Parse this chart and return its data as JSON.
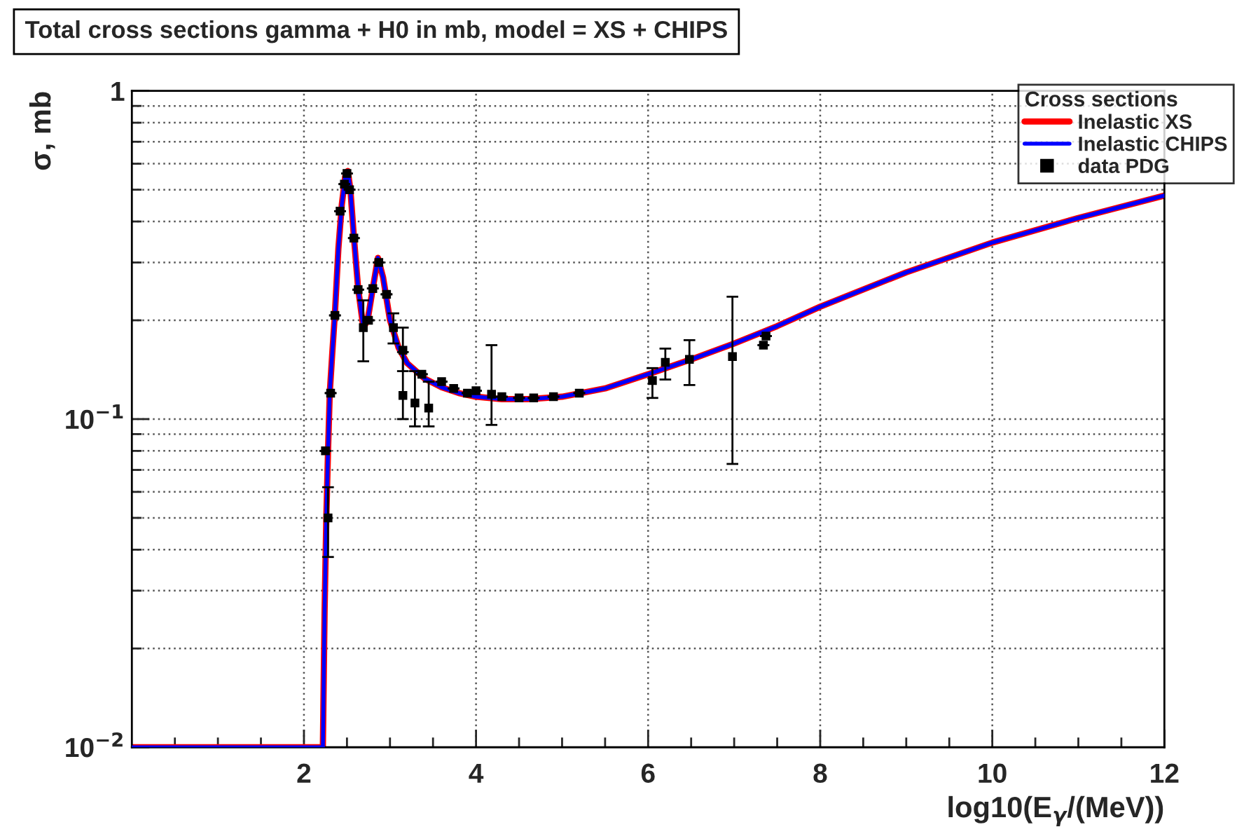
{
  "chart_data": {
    "type": "line",
    "title": "Total cross sections gamma + H0 in mb, model = XS + CHIPS",
    "xlabel": "log10(E$_{γ}$/(MeV))",
    "ylabel": "σ, mb",
    "legend_title": "Cross sections",
    "log": "y",
    "grid": true,
    "legend": "top right",
    "xlim": [
      0,
      12
    ],
    "ylim": [
      0.01,
      1
    ],
    "xticks": [
      {
        "value": 0.5,
        "label": null
      },
      {
        "value": 1,
        "label": null
      },
      {
        "value": 1.5,
        "label": null
      },
      2,
      {
        "value": 2.5,
        "label": null
      },
      {
        "value": 3,
        "label": null
      },
      {
        "value": 3.5,
        "label": null
      },
      4,
      {
        "value": 4.5,
        "label": null
      },
      {
        "value": 5,
        "label": null
      },
      {
        "value": 5.5,
        "label": null
      },
      6,
      {
        "value": 6.5,
        "label": null
      },
      {
        "value": 7,
        "label": null
      },
      {
        "value": 7.5,
        "label": null
      },
      8,
      {
        "value": 8.5,
        "label": null
      },
      {
        "value": 9,
        "label": null
      },
      {
        "value": 9.5,
        "label": null
      },
      10,
      {
        "value": 10.5,
        "label": null
      },
      {
        "value": 11,
        "label": null
      },
      {
        "value": 11.5,
        "label": null
      },
      12
    ],
    "yticks": [
      {
        "value": 0.01,
        "label": "10$^{−2}$"
      },
      {
        "value": 0.02,
        "label": null
      },
      {
        "value": 0.03,
        "label": null
      },
      {
        "value": 0.04,
        "label": null
      },
      {
        "value": 0.05,
        "label": null
      },
      {
        "value": 0.06,
        "label": null
      },
      {
        "value": 0.07,
        "label": null
      },
      {
        "value": 0.08,
        "label": null
      },
      {
        "value": 0.09,
        "label": null
      },
      {
        "value": 0.1,
        "label": "10$^{−1}$"
      },
      {
        "value": 0.2,
        "label": null
      },
      {
        "value": 0.3,
        "label": null
      },
      {
        "value": 0.4,
        "label": null
      },
      {
        "value": 0.5,
        "label": null
      },
      {
        "value": 0.6,
        "label": null
      },
      {
        "value": 0.7,
        "label": null
      },
      {
        "value": 0.8,
        "label": null
      },
      {
        "value": 0.9,
        "label": null
      },
      1
    ],
    "series": [
      {
        "name": "Inelastic XS",
        "color": "#ff0000",
        "x": [
          0,
          2.22,
          2.24,
          2.26,
          2.28,
          2.3,
          2.33,
          2.36,
          2.4,
          2.44,
          2.48,
          2.51,
          2.54,
          2.58,
          2.63,
          2.69,
          2.74,
          2.8,
          2.86,
          2.92,
          3.0,
          3.1,
          3.2,
          3.4,
          3.6,
          3.8,
          4.0,
          4.3,
          4.6,
          5.0,
          5.5,
          6.0,
          6.5,
          7.0,
          7.5,
          8.0,
          9.0,
          10.0,
          11.0,
          12.0
        ],
        "values": [
          0.01,
          0.01,
          0.026,
          0.05,
          0.08,
          0.12,
          0.16,
          0.21,
          0.33,
          0.45,
          0.55,
          0.57,
          0.5,
          0.36,
          0.25,
          0.19,
          0.2,
          0.25,
          0.31,
          0.27,
          0.2,
          0.165,
          0.148,
          0.133,
          0.125,
          0.12,
          0.117,
          0.115,
          0.115,
          0.117,
          0.124,
          0.137,
          0.152,
          0.17,
          0.192,
          0.22,
          0.28,
          0.345,
          0.41,
          0.48
        ]
      },
      {
        "name": "Inelastic CHIPS",
        "color": "#0000ff",
        "x": [
          0,
          2.22,
          2.24,
          2.26,
          2.28,
          2.3,
          2.33,
          2.36,
          2.4,
          2.44,
          2.48,
          2.51,
          2.54,
          2.58,
          2.63,
          2.69,
          2.74,
          2.8,
          2.86,
          2.92,
          3.0,
          3.1,
          3.2,
          3.4,
          3.6,
          3.8,
          4.0,
          4.3,
          4.6,
          5.0,
          5.5,
          6.0,
          6.5,
          7.0,
          7.5,
          8.0,
          9.0,
          10.0,
          11.0,
          12.0
        ],
        "values": [
          0.01,
          0.01,
          0.026,
          0.05,
          0.08,
          0.12,
          0.16,
          0.21,
          0.33,
          0.45,
          0.55,
          0.57,
          0.5,
          0.36,
          0.25,
          0.19,
          0.2,
          0.25,
          0.31,
          0.27,
          0.2,
          0.165,
          0.148,
          0.133,
          0.125,
          0.12,
          0.117,
          0.115,
          0.115,
          0.117,
          0.124,
          0.137,
          0.152,
          0.17,
          0.192,
          0.22,
          0.28,
          0.345,
          0.41,
          0.48
        ]
      },
      {
        "name": "data PDG",
        "color": "#000000",
        "type": "scatter",
        "marker": "square",
        "x": [
          2.25,
          2.28,
          2.31,
          2.36,
          2.42,
          2.47,
          2.5,
          2.53,
          2.58,
          2.63,
          2.69,
          2.75,
          2.8,
          2.87,
          2.96,
          3.04,
          3.15,
          3.15,
          3.29,
          3.37,
          3.45,
          3.6,
          3.74,
          3.9,
          4.0,
          4.18,
          4.3,
          4.5,
          4.67,
          4.9,
          5.2,
          6.05,
          6.2,
          6.48,
          6.98,
          7.34,
          7.37
        ],
        "values": [
          0.08,
          0.05,
          0.12,
          0.207,
          0.43,
          0.52,
          0.56,
          0.5,
          0.356,
          0.248,
          0.19,
          0.2,
          0.25,
          0.3,
          0.24,
          0.19,
          0.162,
          0.118,
          0.112,
          0.137,
          0.108,
          0.13,
          0.124,
          0.12,
          0.122,
          0.119,
          0.117,
          0.116,
          0.116,
          0.117,
          0.12,
          0.131,
          0.149,
          0.152,
          0.155,
          0.168,
          0.179
        ],
        "errors": [
          null,
          [
            0.038,
            0.062
          ],
          null,
          null,
          null,
          null,
          null,
          null,
          null,
          null,
          [
            0.15,
            0.23
          ],
          null,
          null,
          null,
          null,
          [
            0.17,
            0.21
          ],
          [
            0.14,
            0.19
          ],
          [
            0.1,
            0.16
          ],
          [
            0.095,
            0.14
          ],
          null,
          [
            0.095,
            0.13
          ],
          null,
          null,
          null,
          null,
          [
            0.096,
            0.168
          ],
          null,
          null,
          null,
          null,
          null,
          [
            0.116,
            0.143
          ],
          [
            0.132,
            0.164
          ],
          [
            0.127,
            0.174
          ],
          [
            0.073,
            0.236
          ],
          null,
          null
        ]
      }
    ]
  }
}
